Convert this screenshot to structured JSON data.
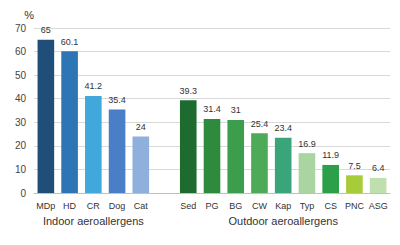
{
  "chart_data": {
    "type": "bar",
    "categories": [
      "MDp",
      "HD",
      "CR",
      "Dog",
      "Cat",
      null,
      "Sed",
      "PG",
      "BG",
      "CW",
      "Kap",
      "Typ",
      "CS",
      "PNC",
      "ASG"
    ],
    "values": [
      65,
      60.1,
      41.2,
      35.4,
      24,
      null,
      39.3,
      31.4,
      31,
      25.4,
      23.4,
      16.9,
      11.9,
      7.5,
      6.4
    ],
    "colors": [
      "#1f4e79",
      "#2e75b6",
      "#41a8dc",
      "#4a7fc8",
      "#8fb0dc",
      null,
      "#1e6b30",
      "#2e8b3e",
      "#3c9e4c",
      "#4daa57",
      "#3aa57a",
      "#a9d6a0",
      "#2ca048",
      "#a6cc3a",
      "#bfe0ae"
    ],
    "y_label": "%",
    "ylim": [
      0,
      70
    ],
    "yticks": [
      0,
      10,
      20,
      30,
      40,
      50,
      60,
      70
    ],
    "grid": true,
    "data_labels": true,
    "annotations": [
      {
        "text": "Indoor aeroallergens",
        "from": "MDp",
        "to": "Cat"
      },
      {
        "text": "Outdoor aeroallergens",
        "from": "Sed",
        "to": "ASG"
      }
    ]
  }
}
